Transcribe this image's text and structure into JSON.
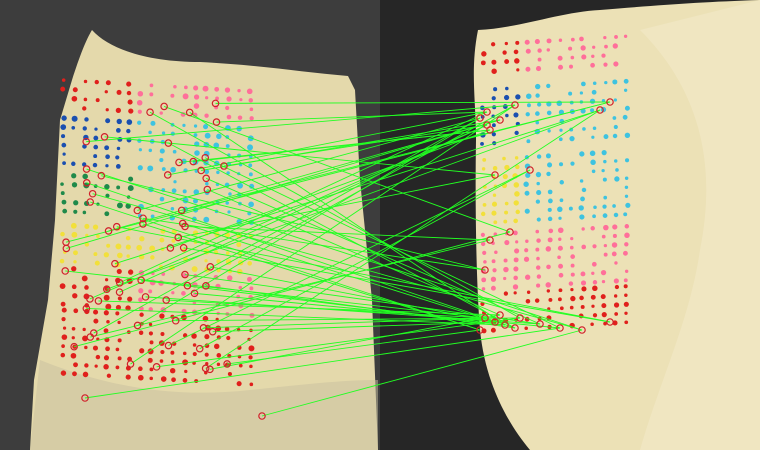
{
  "scene": {
    "description_free": true,
    "panels": [
      {
        "name": "left-tissue-photo",
        "background": "#3a3a3a",
        "tissue": "#e6dcae"
      },
      {
        "name": "right-tissue-photo",
        "background": "#262626",
        "tissue": "#eadfb4"
      }
    ],
    "colors": {
      "match_line": "#22ff22",
      "marker_red": "#e0201c",
      "marker_pink": "#ff6f9a",
      "marker_blue": "#1a4fb0",
      "marker_cyan": "#3ec3e0",
      "marker_yellow": "#f2e03a",
      "marker_green": "#1f8a4a",
      "keypoint_ring": "#d0202a"
    }
  }
}
